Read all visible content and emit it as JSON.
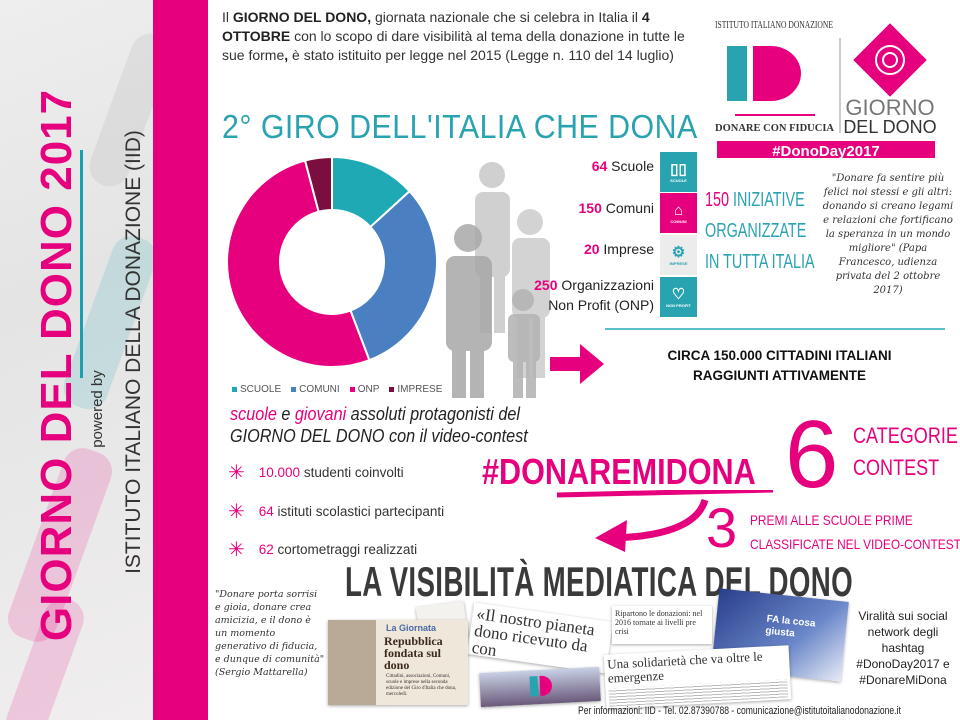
{
  "sidebar": {
    "title": "GIORNO DEL DONO 2017",
    "powered_by": "powered by",
    "institute": "ISTITUTO ITALIANO DELLA DONAZIONE (IID)"
  },
  "intro": {
    "p1": "Il ",
    "b1": "GIORNO DEL DONO,",
    "p2": " giornata nazionale che si celebra in Italia il ",
    "b2": "4 OTTOBRE",
    "p3": " con lo scopo di dare visibilità al tema della donazione in tutte le sue forme",
    "b3": ",",
    "p4": " è stato istituito per legge nel 2015 (Legge n. 110 del 14 luglio)"
  },
  "headline": "2° GIRO DELL'ITALIA CHE DONA",
  "logo": {
    "arc_text": "ISTITUTO ITALIANO DONAZIONE",
    "monogram": "ID",
    "tagline": "DONARE CON FIDUCIA",
    "brand_line1": "GIORNO",
    "brand_line2": "DEL DONO",
    "hashtag": "#DonoDay2017"
  },
  "chart_data": {
    "type": "pie",
    "donut": true,
    "categories": [
      "SCUOLE",
      "COMUNI",
      "ONP",
      "IMPRESE"
    ],
    "values": [
      64,
      150,
      250,
      20
    ],
    "colors": [
      "#1fa9b5",
      "#4a7fc1",
      "#e6007e",
      "#7a0f3f"
    ],
    "legend": "bottom"
  },
  "stats": [
    {
      "num": "64",
      "label": " Scuole"
    },
    {
      "num": "150",
      "label": " Comuni"
    },
    {
      "num": "20",
      "label": " Imprese"
    },
    {
      "num": "250",
      "label": " Organizzazioni",
      "label2": "Non Profit (ONP)"
    }
  ],
  "tiles": [
    {
      "icon": "book-icon",
      "glyph": "📖",
      "label": "SCUOLE",
      "color": "#2aa3b1"
    },
    {
      "icon": "building-icon",
      "glyph": "🏛",
      "label": "COMUNI",
      "color": "#e6007e"
    },
    {
      "icon": "gears-icon",
      "glyph": "⚙",
      "label": "IMPRESE",
      "color": "#e9e9e9"
    },
    {
      "icon": "heart-icon",
      "glyph": "♡",
      "label": "NON PROFIT",
      "color": "#2aa3b1"
    }
  ],
  "initiatives": {
    "num": "150",
    "l1": " INIZIATIVE",
    "l2": "ORGANIZZATE",
    "l3": "IN TUTTA ITALIA"
  },
  "papa_quote": "\"Donare fa sentire più felici noi stessi e gli altri: donando si creano legami e relazioni che fortificano la speranza in un mondo migliore\" (Papa Francesco, udienza privata del 2 ottobre 2017)",
  "citizens": {
    "l1": "CIRCA 150.000 CITTADINI ITALIANI",
    "l2": "RAGGIUNTI ATTIVAMENTE"
  },
  "protagonists": {
    "w1": "scuole",
    "w2": " e ",
    "w3": "giovani",
    "w4": " assoluti protagonisti del",
    "l2a": "GIORNO DEL DONO",
    "l2b": " con il video-contest"
  },
  "bullets": [
    {
      "num": "10.000",
      "text": " studenti coinvolti"
    },
    {
      "num": "64",
      "text": " istituti scolastici partecipanti"
    },
    {
      "num": "62",
      "text": " cortometraggi realizzati"
    }
  ],
  "contest": {
    "hashtag": "#DONAREMIDONA",
    "categories_num": "6",
    "categories_l1": "CATEGORIE",
    "categories_l2": "CONTEST",
    "prizes_num": "3",
    "prizes_l1": "PREMI ALLE SCUOLE PRIME",
    "prizes_l2": "CLASSIFICATE NEL VIDEO-CONTEST"
  },
  "media": {
    "heading": "LA VISIBILITÀ MEDIATICA DEL DONO",
    "quote": "\"Donare porta sorrisi e gioia, donare crea amicizia, e il dono è un momento generativo di fiducia, e dunque di comunità\" (Sergio Mattarella)",
    "clip1_section": "La Giornata",
    "clip1_title": "Repubblica fondata sul dono",
    "clip1_body": "Cittadini, associazioni, Comuni, scuole e imprese nella seconda edizione del Giro d'Italia che dona, mercoledì.",
    "clip2_title": "«Il nostro pianeta dono ricevuto da con",
    "clip3_head": "Ripartono le donazioni: nel 2016 tornate ai livelli pre crisi",
    "clip4_title": "Una solidarietà che va oltre le emergenze",
    "tv_caption": "FA la cosa giusta",
    "virality": "Viralità sui social network degli hashtag #DonoDay2017 e #DonareMiDona"
  },
  "footer": "Per informazioni: IID - Tel. 02.87390788 - comunicazione@istitutoitalianodonazione.it",
  "colors": {
    "accent": "#e6007e",
    "teal": "#2aa3b1"
  }
}
